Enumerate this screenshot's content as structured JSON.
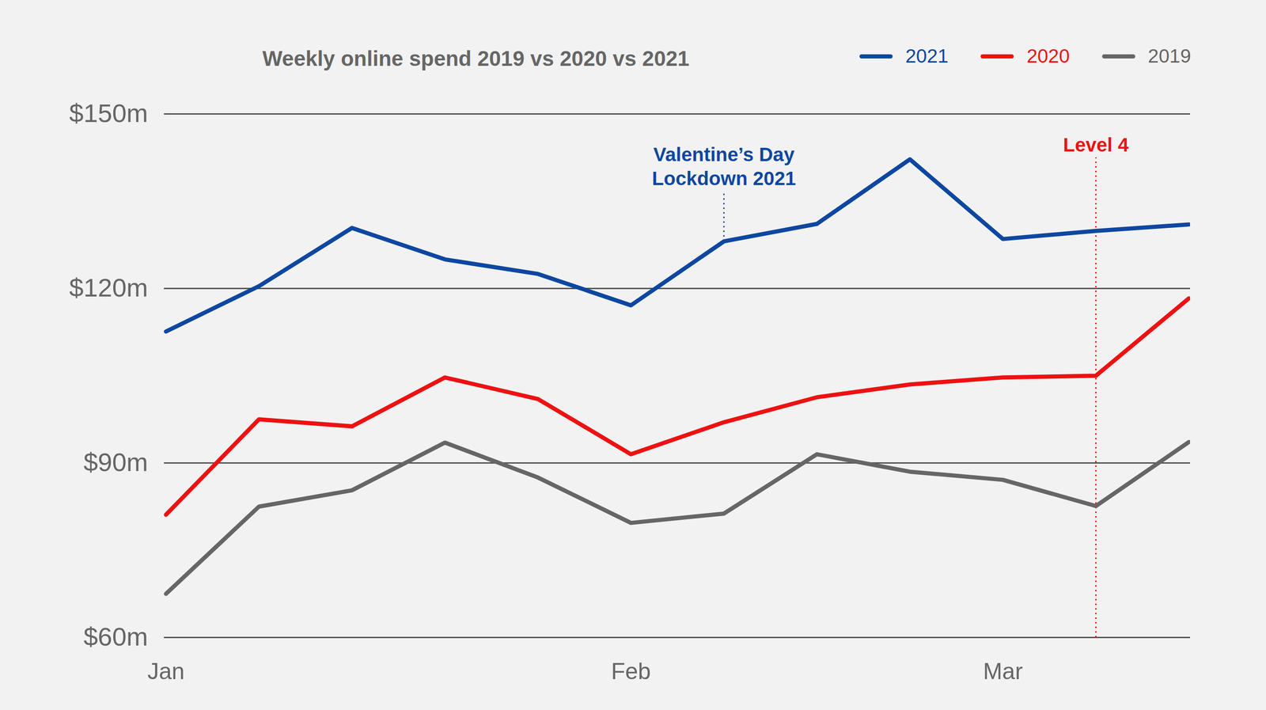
{
  "chart_data": {
    "type": "line",
    "title": "Weekly online spend 2019 vs 2020 vs 2021",
    "categories": [
      "Jan",
      null,
      null,
      null,
      null,
      "Feb",
      null,
      null,
      null,
      "Mar",
      null,
      null
    ],
    "series": [
      {
        "name": "2021",
        "color": "#0d47a1",
        "values": [
          112.6,
          120.4,
          130.4,
          125,
          122.5,
          117.1,
          128.1,
          131.1,
          142.2,
          128.5,
          129.9,
          131
        ]
      },
      {
        "name": "2020",
        "color": "#ee1111",
        "values": [
          81.1,
          97.5,
          96.3,
          104.7,
          101,
          91.5,
          97,
          101.3,
          103.5,
          104.7,
          105,
          118.3
        ]
      },
      {
        "name": "2019",
        "color": "#666666",
        "values": [
          67.5,
          82.5,
          85.3,
          93.5,
          87.5,
          79.7,
          81.3,
          91.5,
          88.5,
          87.1,
          82.6,
          93.6
        ]
      }
    ],
    "ylim": [
      60,
      150
    ],
    "yticks": [
      {
        "value": 60,
        "label": "$60m"
      },
      {
        "value": 90,
        "label": "$90m"
      },
      {
        "value": 120,
        "label": "$120m"
      },
      {
        "value": 150,
        "label": "$150m"
      }
    ],
    "grid": true,
    "legend": "top-right",
    "annotations": [
      {
        "text": "Valentine’s Day\nLockdown 2021",
        "x": 6,
        "series": "2021",
        "color": "#0d47a1",
        "line_style": "dotted"
      },
      {
        "text": "Level 4",
        "x": 10,
        "color": "#ee1111",
        "line_style": "dotted"
      }
    ]
  }
}
